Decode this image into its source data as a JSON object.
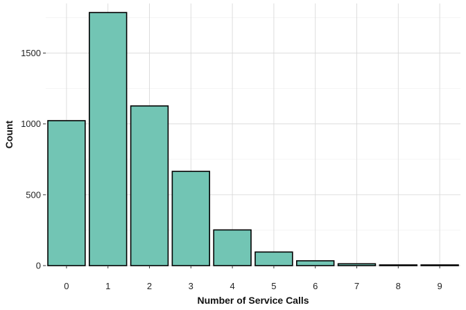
{
  "chart_data": {
    "type": "bar",
    "title": "",
    "xlabel": "Number of Service Calls",
    "ylabel": "Count",
    "categories": [
      "0",
      "1",
      "2",
      "3",
      "4",
      "5",
      "6",
      "7",
      "8",
      "9"
    ],
    "values": [
      1023,
      1786,
      1127,
      665,
      252,
      96,
      34,
      13,
      2,
      2
    ],
    "ylim": [
      0,
      1850
    ],
    "yticks": [
      0,
      500,
      1000,
      1500
    ],
    "yminor_ticks": [
      250,
      750,
      1250,
      1750
    ],
    "grid": true,
    "legend": "none",
    "bar_fill": "#72c5b4",
    "bar_stroke": "#000000",
    "grid_color": "#d9d9d9",
    "minor_grid_color": "#eeeeee"
  }
}
